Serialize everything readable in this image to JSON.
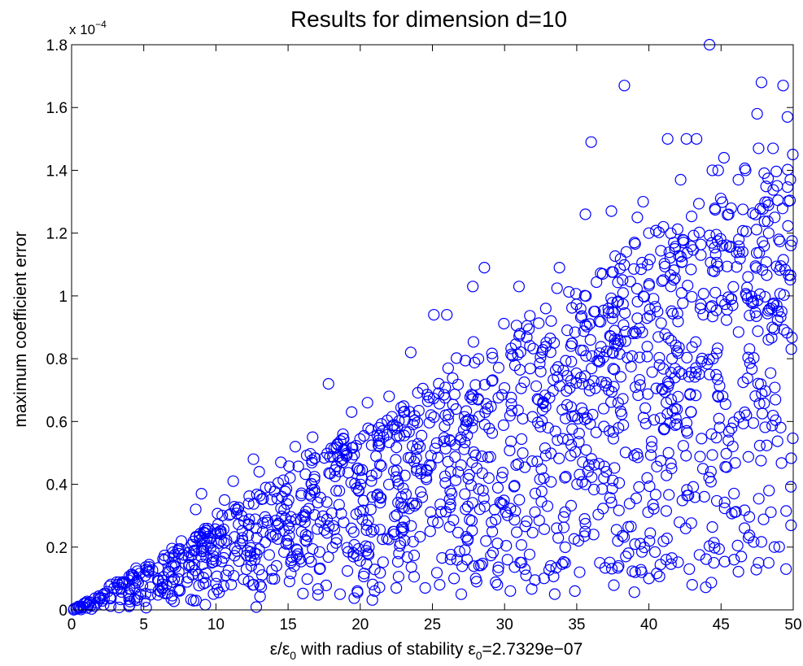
{
  "chart_data": {
    "type": "scatter",
    "title": "Results for dimension d=10",
    "xlabel": {
      "parts": [
        "ε/ε",
        "0",
        " with radius of stability ε",
        "0",
        "=2.7329e−07"
      ]
    },
    "ylabel": "maximum coefficient error",
    "y_multiplier": {
      "base": "x 10",
      "exponent": "−4"
    },
    "xlim": [
      0,
      50
    ],
    "ylim": [
      0,
      1.8
    ],
    "xticks": [
      0,
      5,
      10,
      15,
      20,
      25,
      30,
      35,
      40,
      45,
      50
    ],
    "xtick_labels": [
      "0",
      "5",
      "10",
      "15",
      "20",
      "25",
      "30",
      "35",
      "40",
      "45",
      "50"
    ],
    "yticks": [
      0,
      0.2,
      0.4,
      0.6,
      0.8,
      1.0,
      1.2,
      1.4,
      1.6,
      1.8
    ],
    "ytick_labels": [
      "0",
      "0.2",
      "0.4",
      "0.6",
      "0.8",
      "1",
      "1.2",
      "1.4",
      "1.6",
      "1.8"
    ],
    "grid": false,
    "marker": "circle",
    "marker_color": "#0000ff",
    "series": [
      {
        "x": [
          44.2,
          47.8,
          49.3,
          38.3,
          47.5,
          49.6,
          41.3,
          42.6,
          43.3,
          36.0,
          48.6,
          47.6,
          45.2,
          46.7,
          44.4,
          44.8,
          46.2,
          49.8,
          42.2,
          39.6,
          35.6,
          39.2,
          37.4,
          41.0,
          40.0,
          42.4,
          39.0,
          41.8,
          33.8,
          36.8,
          49.0,
          43.6,
          45.1,
          46.5,
          48.3,
          28.6,
          27.8,
          25.1,
          26.0,
          31.0,
          37.8,
          36.2,
          40.6,
          45.8,
          47.1,
          49.2,
          23.5,
          17.8,
          22.0,
          20.5,
          19.4,
          23.0,
          21.3,
          32.6,
          34.6,
          15.5,
          16.7,
          14.5,
          12.6,
          10.6,
          9.0,
          11.2,
          13.0,
          8.6,
          30.4,
          40.0,
          43.0,
          48.3,
          47.6,
          45.9,
          26.5,
          27.0,
          29.5,
          31.4,
          35.2,
          37.9,
          39.5,
          41.2,
          42.8,
          44.5,
          46.4,
          49.5,
          22.5,
          25.5,
          27.4,
          33.2,
          36.6,
          38.4,
          21.0,
          24.5,
          28.0,
          30.2,
          18.6,
          19.8,
          34.2,
          48.7,
          46.9
        ],
        "y": [
          1.8,
          1.68,
          1.67,
          1.67,
          1.58,
          1.57,
          1.5,
          1.5,
          1.5,
          1.49,
          1.47,
          1.47,
          1.44,
          1.4,
          1.4,
          1.4,
          1.37,
          1.37,
          1.37,
          1.3,
          1.26,
          1.25,
          1.27,
          1.22,
          1.2,
          1.17,
          1.17,
          1.15,
          1.09,
          1.07,
          1.18,
          1.13,
          1.16,
          1.14,
          1.2,
          1.09,
          1.03,
          0.94,
          0.94,
          1.03,
          0.98,
          0.95,
          0.95,
          0.97,
          0.98,
          0.95,
          0.82,
          0.72,
          0.68,
          0.66,
          0.63,
          0.63,
          0.58,
          0.82,
          0.84,
          0.52,
          0.55,
          0.47,
          0.48,
          0.35,
          0.37,
          0.41,
          0.44,
          0.32,
          0.06,
          0.1,
          0.08,
          0.15,
          0.15,
          0.16,
          0.1,
          0.05,
          0.08,
          0.13,
          0.12,
          0.14,
          0.12,
          0.16,
          0.13,
          0.15,
          0.17,
          0.13,
          0.07,
          0.08,
          0.16,
          0.14,
          0.15,
          0.17,
          0.06,
          0.07,
          0.1,
          0.16,
          0.05,
          0.06,
          0.15,
          0.2,
          0.23
        ]
      }
    ]
  }
}
